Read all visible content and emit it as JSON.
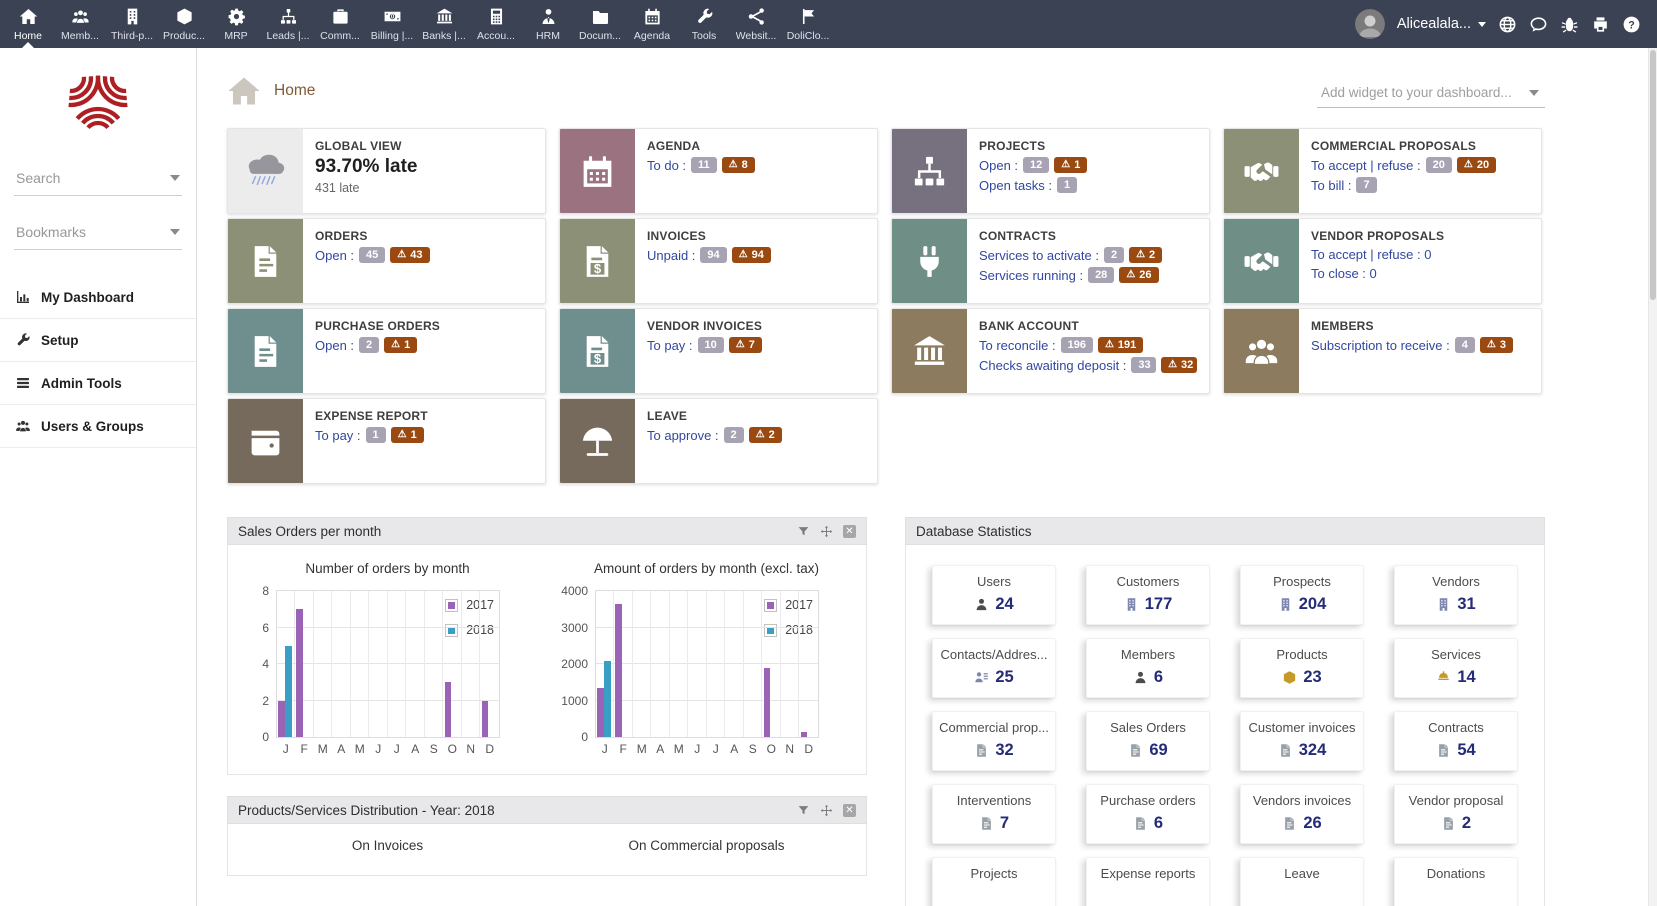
{
  "icons": {
    "warning": "⚠"
  },
  "topnav": {
    "items": [
      "Home",
      "Memb...",
      "Third-p...",
      "Produc...",
      "MRP",
      "Leads |...",
      "Comm...",
      "Billing |...",
      "Banks |...",
      "Accou...",
      "HRM",
      "Docum...",
      "Agenda",
      "Tools",
      "Websit...",
      "DoliClo..."
    ],
    "user": "Alicealala..."
  },
  "sidebar": {
    "search": "Search",
    "bookmarks": "Bookmarks",
    "menu": [
      "My Dashboard",
      "Setup",
      "Admin Tools",
      "Users & Groups"
    ]
  },
  "breadcrumb": {
    "title": "Home"
  },
  "add_widget": {
    "placeholder": "Add widget to your dashboard..."
  },
  "widgets": [
    {
      "title": "GLOBAL VIEW",
      "big": "93.70% late",
      "sub": "431 late",
      "icon_bg": "#ececec"
    },
    {
      "title": "AGENDA",
      "icon_bg": "#9a7280",
      "lines": [
        {
          "label": "To do :",
          "count": "11",
          "warn": "8"
        }
      ]
    },
    {
      "title": "PROJECTS",
      "icon_bg": "#77717f",
      "lines": [
        {
          "label": "Open :",
          "count": "12",
          "warn": "1"
        },
        {
          "label": "Open tasks :",
          "count": "1"
        }
      ]
    },
    {
      "title": "COMMERCIAL PROPOSALS",
      "icon_bg": "#8c9077",
      "lines": [
        {
          "label": "To accept | refuse :",
          "count": "20",
          "warn": "20"
        },
        {
          "label": "To bill :",
          "count": "7"
        }
      ]
    },
    {
      "title": "ORDERS",
      "icon_bg": "#8c9077",
      "lines": [
        {
          "label": "Open :",
          "count": "45",
          "warn": "43"
        }
      ]
    },
    {
      "title": "INVOICES",
      "icon_bg": "#8c9077",
      "lines": [
        {
          "label": "Unpaid :",
          "count": "94",
          "warn": "94"
        }
      ]
    },
    {
      "title": "CONTRACTS",
      "icon_bg": "#6e8e86",
      "lines": [
        {
          "label": "Services to activate :",
          "count": "2",
          "warn": "2"
        },
        {
          "label": "Services running :",
          "count": "28",
          "warn": "26"
        }
      ]
    },
    {
      "title": "VENDOR PROPOSALS",
      "icon_bg": "#6e8e86",
      "lines": [
        {
          "label": "To accept | refuse : 0"
        },
        {
          "label": "To close : 0"
        }
      ]
    },
    {
      "title": "PURCHASE ORDERS",
      "icon_bg": "#6f8f8e",
      "lines": [
        {
          "label": "Open :",
          "count": "2",
          "warn": "1"
        }
      ]
    },
    {
      "title": "VENDOR INVOICES",
      "icon_bg": "#6f8f8e",
      "lines": [
        {
          "label": "To pay :",
          "count": "10",
          "warn": "7"
        }
      ]
    },
    {
      "title": "BANK ACCOUNT",
      "icon_bg": "#8d7b60",
      "lines": [
        {
          "label": "To reconcile :",
          "count": "196",
          "warn": "191"
        },
        {
          "label": "Checks awaiting deposit :",
          "count": "33",
          "warn": "32"
        }
      ]
    },
    {
      "title": "MEMBERS",
      "icon_bg": "#8d7b60",
      "lines": [
        {
          "label": "Subscription to receive :",
          "count": "4",
          "warn": "3"
        }
      ]
    },
    {
      "title": "EXPENSE REPORT",
      "icon_bg": "#766a5c",
      "lines": [
        {
          "label": "To pay :",
          "count": "1",
          "warn": "1"
        }
      ]
    },
    {
      "title": "LEAVE",
      "icon_bg": "#766a5c",
      "lines": [
        {
          "label": "To approve :",
          "count": "2",
          "warn": "2"
        }
      ]
    }
  ],
  "panels": {
    "sales": {
      "title": "Sales Orders per month"
    },
    "db": {
      "title": "Database Statistics"
    },
    "dist": {
      "title": "Products/Services Distribution - Year: 2018",
      "charts": [
        "On Invoices",
        "On Commercial proposals"
      ]
    }
  },
  "chart_data": [
    {
      "type": "bar",
      "title": "Number of orders by month",
      "categories": [
        "J",
        "F",
        "M",
        "A",
        "M",
        "J",
        "J",
        "A",
        "S",
        "O",
        "N",
        "D"
      ],
      "series": [
        {
          "name": "2017",
          "color": "#9a63b5",
          "values": [
            2,
            7,
            0,
            0,
            0,
            0,
            0,
            0,
            0,
            3,
            0,
            2
          ]
        },
        {
          "name": "2018",
          "color": "#3a9fc4",
          "values": [
            5,
            0,
            0,
            0,
            0,
            0,
            0,
            0,
            0,
            0,
            0,
            0
          ]
        }
      ],
      "ylim": [
        0,
        8
      ],
      "yticks": [
        0,
        2,
        4,
        6,
        8
      ],
      "grid": true,
      "legend_position": "top-right"
    },
    {
      "type": "bar",
      "title": "Amount of orders by month (excl. tax)",
      "categories": [
        "J",
        "F",
        "M",
        "A",
        "M",
        "J",
        "J",
        "A",
        "S",
        "O",
        "N",
        "D"
      ],
      "series": [
        {
          "name": "2017",
          "color": "#9a63b5",
          "values": [
            1350,
            3650,
            0,
            0,
            0,
            0,
            0,
            0,
            0,
            1900,
            0,
            130
          ]
        },
        {
          "name": "2018",
          "color": "#3a9fc4",
          "values": [
            2070,
            0,
            0,
            0,
            0,
            0,
            0,
            0,
            0,
            0,
            0,
            0
          ]
        }
      ],
      "ylim": [
        0,
        4000
      ],
      "yticks": [
        0,
        1000,
        2000,
        3000,
        4000
      ],
      "grid": true,
      "legend_position": "top-right"
    }
  ],
  "db_stats": [
    {
      "label": "Users",
      "value": "24"
    },
    {
      "label": "Customers",
      "value": "177"
    },
    {
      "label": "Prospects",
      "value": "204"
    },
    {
      "label": "Vendors",
      "value": "31"
    },
    {
      "label": "Contacts/Addres...",
      "value": "25"
    },
    {
      "label": "Members",
      "value": "6"
    },
    {
      "label": "Products",
      "value": "23"
    },
    {
      "label": "Services",
      "value": "14"
    },
    {
      "label": "Commercial prop...",
      "value": "32"
    },
    {
      "label": "Sales Orders",
      "value": "69"
    },
    {
      "label": "Customer invoices",
      "value": "324"
    },
    {
      "label": "Contracts",
      "value": "54"
    },
    {
      "label": "Interventions",
      "value": "7"
    },
    {
      "label": "Purchase orders",
      "value": "6"
    },
    {
      "label": "Vendors invoices",
      "value": "26"
    },
    {
      "label": "Vendor proposal",
      "value": "2"
    },
    {
      "label": "Projects",
      "value": ""
    },
    {
      "label": "Expense reports",
      "value": ""
    },
    {
      "label": "Leave",
      "value": ""
    },
    {
      "label": "Donations",
      "value": ""
    }
  ]
}
